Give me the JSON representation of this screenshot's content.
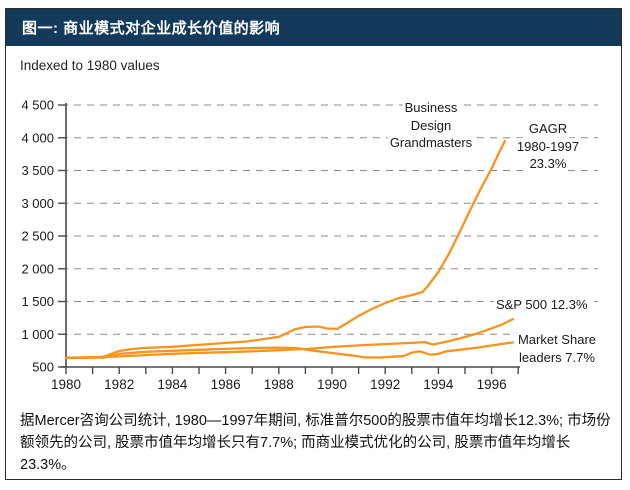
{
  "header": {
    "title": "图一: 商业模式对企业成长价值的影响"
  },
  "subtitle": "Indexed to 1980 values",
  "caption": "据Mercer咨询公司统计, 1980—1997年期间, 标准普尔500的股票市值年均增长12.3%; 市场份额领先的公司, 股票市值年均增长只有7.7%; 而商业模式优化的公司, 股票市值年均增长23.3%。",
  "colors": {
    "header_bg": "#143a5b",
    "header_text": "#ffffff",
    "line": "#f7941e",
    "grid": "#8c8c8c",
    "axis": "#4a4a4a",
    "text": "#1a1a1a"
  },
  "chart_data": {
    "type": "line",
    "title": "图一: 商业模式对企业成长价值的影响",
    "subtitle": "Indexed to 1980 values",
    "xlabel": "",
    "ylabel": "",
    "xlim": [
      1980,
      1997
    ],
    "ylim": [
      500,
      4500
    ],
    "grid": "horizontal-dashed",
    "legend_position": "inline-annotations",
    "y_ticks": [
      {
        "value": 500,
        "label": "500",
        "grid": false
      },
      {
        "value": 1000,
        "label": "1 000",
        "grid": true
      },
      {
        "value": 1500,
        "label": "1 500",
        "grid": true
      },
      {
        "value": 2000,
        "label": "2 000",
        "grid": true
      },
      {
        "value": 2500,
        "label": "2 500",
        "grid": true
      },
      {
        "value": 3000,
        "label": "3 000",
        "grid": true
      },
      {
        "value": 3500,
        "label": "3 500",
        "grid": true
      },
      {
        "value": 4000,
        "label": "4 000",
        "grid": true
      },
      {
        "value": 4500,
        "label": "4 500",
        "grid": true
      }
    ],
    "x_ticks": [
      {
        "year": 1980,
        "label": "1980"
      },
      {
        "year": 1981,
        "label": ""
      },
      {
        "year": 1982,
        "label": "1982"
      },
      {
        "year": 1983,
        "label": ""
      },
      {
        "year": 1984,
        "label": "1984"
      },
      {
        "year": 1985,
        "label": ""
      },
      {
        "year": 1986,
        "label": "1986"
      },
      {
        "year": 1987,
        "label": ""
      },
      {
        "year": 1988,
        "label": "1988"
      },
      {
        "year": 1989,
        "label": ""
      },
      {
        "year": 1990,
        "label": "1990"
      },
      {
        "year": 1991,
        "label": ""
      },
      {
        "year": 1992,
        "label": "1992"
      },
      {
        "year": 1993,
        "label": ""
      },
      {
        "year": 1994,
        "label": "1994"
      },
      {
        "year": 1995,
        "label": ""
      },
      {
        "year": 1996,
        "label": "1996"
      },
      {
        "year": 1997,
        "label": ""
      }
    ],
    "series": [
      {
        "name": "Business Design Grandmasters",
        "cagr_1980_1997": "23.3%",
        "color": "#f7941e",
        "points": [
          [
            1980,
            640
          ],
          [
            1980.8,
            645
          ],
          [
            1981.4,
            655
          ],
          [
            1982,
            745
          ],
          [
            1982.5,
            775
          ],
          [
            1983,
            792
          ],
          [
            1984,
            808
          ],
          [
            1985,
            838
          ],
          [
            1986,
            868
          ],
          [
            1986.8,
            890
          ],
          [
            1987.2,
            912
          ],
          [
            1988,
            960
          ],
          [
            1988.6,
            1075
          ],
          [
            1989,
            1110
          ],
          [
            1989.5,
            1118
          ],
          [
            1989.8,
            1088
          ],
          [
            1990.2,
            1082
          ],
          [
            1990.6,
            1180
          ],
          [
            1991,
            1280
          ],
          [
            1991.5,
            1385
          ],
          [
            1992,
            1475
          ],
          [
            1992.5,
            1550
          ],
          [
            1993,
            1598
          ],
          [
            1993.4,
            1645
          ],
          [
            1993.6,
            1735
          ],
          [
            1994,
            1950
          ],
          [
            1994.4,
            2230
          ],
          [
            1994.8,
            2560
          ],
          [
            1995.2,
            2900
          ],
          [
            1995.6,
            3230
          ],
          [
            1996,
            3530
          ],
          [
            1996.3,
            3790
          ],
          [
            1996.5,
            3950
          ]
        ]
      },
      {
        "name": "S&P 500",
        "cagr_1980_1997": "12.3%",
        "color": "#f7941e",
        "points": [
          [
            1980,
            638
          ],
          [
            1981,
            642
          ],
          [
            1982,
            662
          ],
          [
            1983,
            682
          ],
          [
            1984,
            702
          ],
          [
            1985,
            716
          ],
          [
            1986,
            726
          ],
          [
            1987,
            740
          ],
          [
            1988,
            757
          ],
          [
            1989,
            775
          ],
          [
            1990,
            806
          ],
          [
            1991,
            830
          ],
          [
            1992,
            850
          ],
          [
            1993,
            868
          ],
          [
            1993.5,
            880
          ],
          [
            1993.8,
            843
          ],
          [
            1994.1,
            868
          ],
          [
            1994.5,
            905
          ],
          [
            1995,
            958
          ],
          [
            1995.5,
            1018
          ],
          [
            1996,
            1090
          ],
          [
            1996.4,
            1150
          ],
          [
            1996.8,
            1230
          ]
        ]
      },
      {
        "name": "Market Share leaders",
        "cagr_1980_1997": "7.7%",
        "color": "#f7941e",
        "points": [
          [
            1980,
            640
          ],
          [
            1981,
            650
          ],
          [
            1981.4,
            642
          ],
          [
            1982,
            700
          ],
          [
            1983,
            732
          ],
          [
            1984,
            748
          ],
          [
            1985,
            762
          ],
          [
            1986,
            776
          ],
          [
            1987,
            790
          ],
          [
            1988,
            796
          ],
          [
            1988.7,
            788
          ],
          [
            1989.2,
            755
          ],
          [
            1990,
            714
          ],
          [
            1990.7,
            678
          ],
          [
            1991.2,
            648
          ],
          [
            1991.8,
            645
          ],
          [
            1992.3,
            658
          ],
          [
            1992.7,
            668
          ],
          [
            1993,
            720
          ],
          [
            1993.3,
            740
          ],
          [
            1993.7,
            688
          ],
          [
            1994,
            700
          ],
          [
            1994.3,
            740
          ],
          [
            1995,
            772
          ],
          [
            1995.5,
            798
          ],
          [
            1996,
            828
          ],
          [
            1996.4,
            852
          ],
          [
            1996.8,
            875
          ]
        ]
      }
    ],
    "annotations": [
      {
        "id": "business-design",
        "lines": [
          "Business",
          "Design",
          "Grandmasters"
        ]
      },
      {
        "id": "gagr",
        "lines": [
          "GAGR",
          "1980-1997",
          "23.3%"
        ]
      },
      {
        "id": "sp500",
        "lines": [
          "S&P 500 12.3%"
        ]
      },
      {
        "id": "market-share",
        "lines": [
          "Market Share",
          "leaders 7.7%"
        ]
      }
    ]
  }
}
